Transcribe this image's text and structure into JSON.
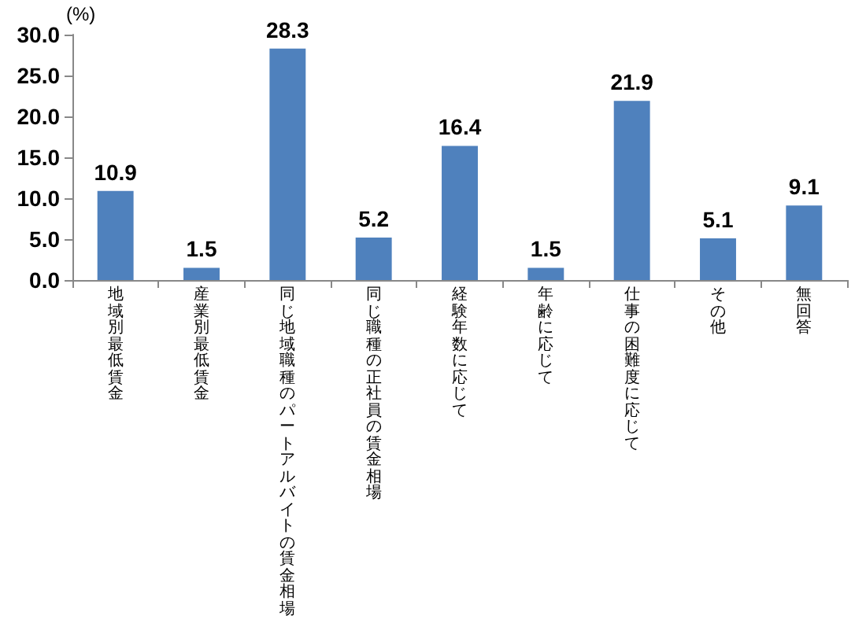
{
  "chart_data": {
    "type": "bar",
    "ylabel": "(%)",
    "categories": [
      "地域別最低賃金",
      "産業別最低賃金",
      "同じ地域職種のパートアルバイトの賃金相場",
      "同じ職種の正社員の賃金相場",
      "経験年数に応じて",
      "年齢に応じて",
      "仕事の困難度に応じて",
      "その他",
      "無回答"
    ],
    "values": [
      10.9,
      1.5,
      28.3,
      5.2,
      16.4,
      1.5,
      21.9,
      5.1,
      9.1
    ],
    "color": "#4f81bd",
    "ylim": [
      0,
      30
    ],
    "yticks": [
      {
        "value": 0,
        "label": "0.0"
      },
      {
        "value": 5,
        "label": "5.0"
      },
      {
        "value": 10,
        "label": "10.0"
      },
      {
        "value": 15,
        "label": "15.0"
      },
      {
        "value": 20,
        "label": "20.0"
      },
      {
        "value": 25,
        "label": "25.0"
      },
      {
        "value": 30,
        "label": "30.0"
      }
    ],
    "data_labels": true,
    "grid": false
  }
}
